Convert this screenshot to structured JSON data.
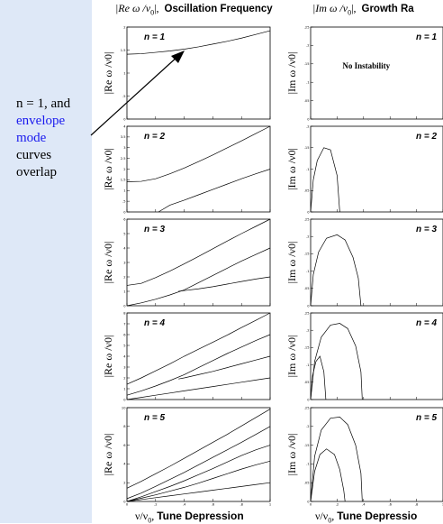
{
  "header": {
    "left_title_math": "|Re ω /ν",
    "left_title_sub": "0",
    "left_title_tail": "|,",
    "left_title_text": "Oscillation Frequency",
    "right_title_math": "|Im ω /ν",
    "right_title_sub": "0",
    "right_title_tail": "|,",
    "right_title_text": "Growth Ra"
  },
  "footer": {
    "left_math": "ν/ν",
    "left_sub": "0",
    "left_comma": ",",
    "left_text": "Tune Depression",
    "right_math": "ν/ν",
    "right_sub": "0",
    "right_comma": ",",
    "right_text": "Tune Depressio"
  },
  "annotation": {
    "line1": "n = 1, and",
    "line2": "envelope",
    "line3": "mode",
    "line4": "curves",
    "line5": "overlap"
  },
  "colors": {
    "accent_text": "#1a1aee",
    "side_panel": "#dee8f7",
    "arrow": "#000000"
  },
  "chart_data": [
    {
      "type": "line",
      "panel": "frequency",
      "label": "n = 1",
      "ylabel": "|Re ω /ν0|",
      "xlim": [
        0,
        1
      ],
      "ylim": [
        0,
        2
      ],
      "yticks": [
        0,
        0.5,
        1,
        1.5,
        2
      ],
      "series": [
        {
          "x": [
            0,
            0.1,
            0.2,
            0.3,
            0.4,
            0.5,
            0.6,
            0.7,
            0.8,
            0.9,
            1.0
          ],
          "values": [
            1.41,
            1.42,
            1.45,
            1.48,
            1.52,
            1.57,
            1.63,
            1.69,
            1.76,
            1.84,
            1.92
          ]
        }
      ]
    },
    {
      "type": "line",
      "panel": "frequency",
      "label": "n = 2",
      "ylabel": "|Re ω /ν0|",
      "xlim": [
        0,
        1
      ],
      "ylim": [
        0,
        4
      ],
      "yticks": [
        0,
        0.5,
        1,
        1.5,
        2,
        2.5,
        3,
        3.5,
        4
      ],
      "series": [
        {
          "x": [
            0,
            0.1,
            0.2,
            0.3,
            0.4,
            0.5,
            0.6,
            0.7,
            0.8,
            0.9,
            1.0
          ],
          "values": [
            1.41,
            1.43,
            1.55,
            1.78,
            2.05,
            2.35,
            2.66,
            2.99,
            3.32,
            3.66,
            4.0
          ]
        },
        {
          "x": [
            0.22,
            0.3,
            0.4,
            0.5,
            0.6,
            0.7,
            0.8,
            0.9,
            1.0
          ],
          "values": [
            0.0,
            0.32,
            0.55,
            0.8,
            1.05,
            1.3,
            1.55,
            1.78,
            2.0
          ]
        }
      ]
    },
    {
      "type": "line",
      "panel": "frequency",
      "label": "n = 3",
      "ylabel": "|Re ω /ν0|",
      "xlim": [
        0,
        1
      ],
      "ylim": [
        0,
        6
      ],
      "yticks": [
        0,
        1,
        2,
        3,
        4,
        5,
        6
      ],
      "series": [
        {
          "x": [
            0,
            0.1,
            0.2,
            0.3,
            0.4,
            0.5,
            0.6,
            0.7,
            0.8,
            0.9,
            1.0
          ],
          "values": [
            1.41,
            1.55,
            1.95,
            2.4,
            2.9,
            3.42,
            3.95,
            4.48,
            5.0,
            5.5,
            6.0
          ]
        },
        {
          "x": [
            0,
            0.1,
            0.2,
            0.3,
            0.4,
            0.5,
            0.6,
            0.7,
            0.8,
            0.9,
            1.0
          ],
          "values": [
            0.0,
            0.2,
            0.45,
            0.75,
            1.1,
            1.6,
            2.1,
            2.6,
            3.1,
            3.55,
            4.0
          ]
        },
        {
          "x": [
            0.36,
            0.4,
            0.5,
            0.6,
            0.7,
            0.8,
            0.9,
            1.0
          ],
          "values": [
            1.0,
            1.05,
            1.17,
            1.32,
            1.5,
            1.68,
            1.85,
            2.0
          ]
        }
      ]
    },
    {
      "type": "line",
      "panel": "frequency",
      "label": "n = 4",
      "ylabel": "|Re ω /ν0|",
      "xlim": [
        0,
        1
      ],
      "ylim": [
        0,
        8
      ],
      "yticks": [
        0,
        1,
        2,
        3,
        4,
        5,
        6,
        7,
        8
      ],
      "series": [
        {
          "x": [
            0,
            0.1,
            0.2,
            0.3,
            0.4,
            0.5,
            0.6,
            0.7,
            0.8,
            0.9,
            1.0
          ],
          "values": [
            1.41,
            2.0,
            2.65,
            3.3,
            4.0,
            4.65,
            5.3,
            5.95,
            6.65,
            7.32,
            8.0
          ]
        },
        {
          "x": [
            0,
            0.1,
            0.2,
            0.3,
            0.4,
            0.5,
            0.6,
            0.7,
            0.8,
            0.9,
            1.0
          ],
          "values": [
            0.4,
            0.8,
            1.25,
            1.75,
            2.3,
            2.95,
            3.6,
            4.25,
            4.85,
            5.45,
            6.0
          ]
        },
        {
          "x": [
            0.36,
            0.4,
            0.5,
            0.6,
            0.7,
            0.8,
            0.9,
            1.0
          ],
          "values": [
            1.9,
            2.0,
            2.3,
            2.6,
            2.95,
            3.3,
            3.65,
            4.0
          ]
        },
        {
          "x": [
            0,
            0.1,
            0.2,
            0.3,
            0.4,
            0.5,
            0.6,
            0.7,
            0.8,
            0.9,
            1.0
          ],
          "values": [
            0.0,
            0.2,
            0.4,
            0.6,
            0.8,
            1.0,
            1.2,
            1.4,
            1.6,
            1.8,
            2.0
          ]
        }
      ]
    },
    {
      "type": "line",
      "panel": "frequency",
      "label": "n = 5",
      "ylabel": "|Re ω /ν0|",
      "xlim": [
        0,
        1
      ],
      "ylim": [
        0,
        10
      ],
      "yticks": [
        0,
        2,
        4,
        6,
        8,
        10
      ],
      "xticks": [
        0,
        0.2,
        0.4,
        0.6,
        0.8,
        1
      ],
      "series": [
        {
          "x": [
            0,
            0.1,
            0.2,
            0.3,
            0.4,
            0.5,
            0.6,
            0.7,
            0.8,
            0.9,
            1.0
          ],
          "values": [
            1.41,
            2.15,
            2.95,
            3.75,
            4.6,
            5.45,
            6.3,
            7.15,
            8.05,
            8.95,
            9.85
          ]
        },
        {
          "x": [
            0,
            0.1,
            0.2,
            0.3,
            0.4,
            0.5,
            0.6,
            0.7,
            0.8,
            0.9,
            1.0
          ],
          "values": [
            0.3,
            0.9,
            1.6,
            2.35,
            3.1,
            3.9,
            4.7,
            5.5,
            6.3,
            7.15,
            8.0
          ]
        },
        {
          "x": [
            0,
            0.1,
            0.2,
            0.3,
            0.4,
            0.5,
            0.6,
            0.7,
            0.8,
            0.9,
            1.0
          ],
          "values": [
            0.0,
            0.5,
            1.05,
            1.6,
            2.2,
            2.85,
            3.5,
            4.2,
            4.9,
            5.5,
            6.0
          ]
        },
        {
          "x": [
            0,
            0.1,
            0.2,
            0.3,
            0.4,
            0.5,
            0.6,
            0.7,
            0.8,
            0.9,
            1.0
          ],
          "values": [
            0.0,
            0.35,
            0.7,
            1.1,
            1.5,
            1.95,
            2.45,
            2.95,
            3.45,
            3.9,
            4.3
          ]
        },
        {
          "x": [
            0,
            0.1,
            0.2,
            0.3,
            0.4,
            0.5,
            0.6,
            0.7,
            0.8,
            0.9,
            1.0
          ],
          "values": [
            0.0,
            0.2,
            0.4,
            0.6,
            0.8,
            1.0,
            1.2,
            1.4,
            1.6,
            1.8,
            2.0
          ]
        }
      ]
    },
    {
      "type": "line",
      "panel": "growth",
      "label": "n = 1",
      "ylabel": "|Im ω /ν0|",
      "xlim": [
        0,
        1
      ],
      "ylim": [
        0,
        0.25
      ],
      "yticks": [
        0,
        0.05,
        0.1,
        0.15,
        0.2,
        0.25
      ],
      "note": "No Instability",
      "series": []
    },
    {
      "type": "line",
      "panel": "growth",
      "label": "n = 2",
      "ylabel": "|Im ω /ν0|",
      "xlim": [
        0,
        1
      ],
      "ylim": [
        0,
        0.2
      ],
      "yticks": [
        0,
        0.05,
        0.1,
        0.15,
        0.2
      ],
      "series": [
        {
          "x": [
            0,
            0.02,
            0.05,
            0.1,
            0.15,
            0.2,
            0.22
          ],
          "values": [
            0.0,
            0.075,
            0.12,
            0.15,
            0.145,
            0.085,
            0.0
          ]
        }
      ]
    },
    {
      "type": "line",
      "panel": "growth",
      "label": "n = 3",
      "ylabel": "|Im ω /ν0|",
      "xlim": [
        0,
        1
      ],
      "ylim": [
        0,
        0.25
      ],
      "yticks": [
        0,
        0.05,
        0.1,
        0.15,
        0.2,
        0.25
      ],
      "series": [
        {
          "x": [
            0,
            0.02,
            0.06,
            0.12,
            0.2,
            0.26,
            0.32,
            0.36,
            0.38
          ],
          "values": [
            0.0,
            0.09,
            0.155,
            0.195,
            0.205,
            0.19,
            0.14,
            0.08,
            0.0
          ]
        }
      ]
    },
    {
      "type": "line",
      "panel": "growth",
      "label": "n = 4",
      "ylabel": "|Im ω /ν0|",
      "xlim": [
        0,
        1
      ],
      "ylim": [
        0,
        0.25
      ],
      "yticks": [
        0,
        0.05,
        0.1,
        0.15,
        0.2,
        0.25
      ],
      "series": [
        {
          "x": [
            0,
            0.03,
            0.08,
            0.15,
            0.22,
            0.28,
            0.34,
            0.38,
            0.39
          ],
          "values": [
            0.0,
            0.11,
            0.18,
            0.215,
            0.22,
            0.205,
            0.155,
            0.08,
            0.0
          ]
        },
        {
          "x": [
            0,
            0.015,
            0.04,
            0.07,
            0.1,
            0.115
          ],
          "values": [
            0.0,
            0.07,
            0.11,
            0.125,
            0.08,
            0.0
          ]
        }
      ]
    },
    {
      "type": "line",
      "panel": "growth",
      "label": "n = 5",
      "ylabel": "|Im ω /ν0|",
      "xlim": [
        0,
        1
      ],
      "ylim": [
        0,
        0.25
      ],
      "yticks": [
        0,
        0.05,
        0.1,
        0.15,
        0.2,
        0.25
      ],
      "xticks": [
        0,
        0.2,
        0.4,
        0.6,
        0.8,
        1
      ],
      "series": [
        {
          "x": [
            0,
            0.03,
            0.08,
            0.15,
            0.22,
            0.28,
            0.34,
            0.38,
            0.39
          ],
          "values": [
            0.0,
            0.12,
            0.19,
            0.222,
            0.225,
            0.205,
            0.15,
            0.075,
            0.0
          ]
        },
        {
          "x": [
            0,
            0.03,
            0.07,
            0.12,
            0.18,
            0.22,
            0.25,
            0.26
          ],
          "values": [
            0.0,
            0.08,
            0.125,
            0.14,
            0.125,
            0.085,
            0.03,
            0.0
          ]
        }
      ]
    }
  ]
}
